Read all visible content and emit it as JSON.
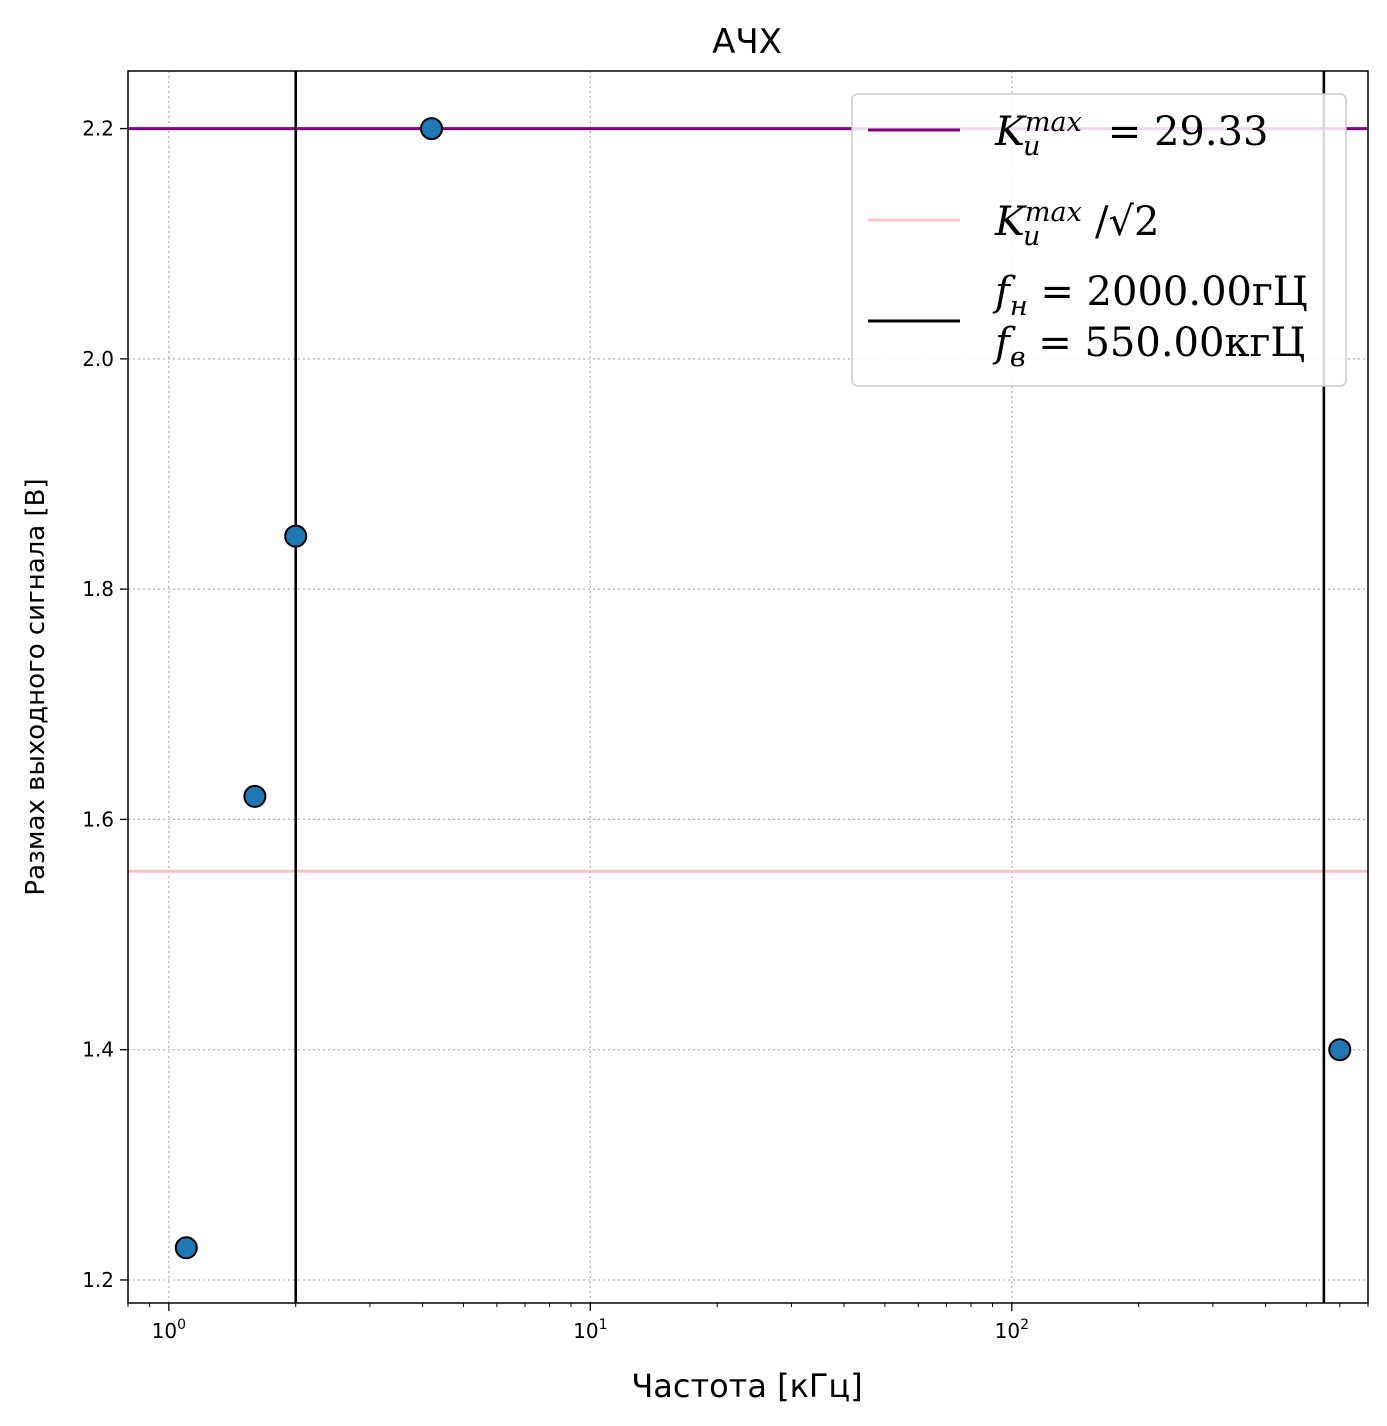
{
  "chart_data": {
    "type": "scatter",
    "title": "АЧХ",
    "xlabel": "Частота [кГц]",
    "ylabel": "Размах выходного сигнала [В]",
    "xscale": "log",
    "xlim": [
      0.8,
      700
    ],
    "ylim": [
      1.18,
      2.25
    ],
    "grid": true,
    "legend_position": "top-right",
    "x_ticks": [
      {
        "value": 1,
        "base": "10",
        "exp": "0"
      },
      {
        "value": 10,
        "base": "10",
        "exp": "1"
      },
      {
        "value": 100,
        "base": "10",
        "exp": "2"
      }
    ],
    "y_ticks": [
      "1.2",
      "1.4",
      "1.6",
      "1.8",
      "2.0",
      "2.2"
    ],
    "points": {
      "x": [
        1.1,
        1.6,
        2.0,
        4.2,
        600
      ],
      "y": [
        1.228,
        1.62,
        1.846,
        2.2,
        1.4
      ],
      "color": "#1f77b4"
    },
    "hlines": [
      {
        "y": 2.2,
        "color": "#800080"
      },
      {
        "y": 1.555,
        "color": "#ffc0cb"
      }
    ],
    "vlines": [
      {
        "x": 2.0,
        "color": "#000000"
      },
      {
        "x": 550,
        "color": "#000000"
      }
    ],
    "legend": [
      {
        "color": "#800080",
        "sym": "K",
        "sub": "u",
        "sup": "max",
        "text": " =  29.33"
      },
      {
        "color": "#ffc0cb",
        "sym": "K",
        "sub": "u",
        "sup": "max",
        "text": "/√2"
      },
      {
        "color": "#000000",
        "line1_sym": "f",
        "line1_sub": "н",
        "line1_text": " = 2000.00гЦ",
        "line2_sym": "f",
        "line2_sub": "в",
        "line2_text": " = 550.00кгЦ"
      }
    ]
  }
}
